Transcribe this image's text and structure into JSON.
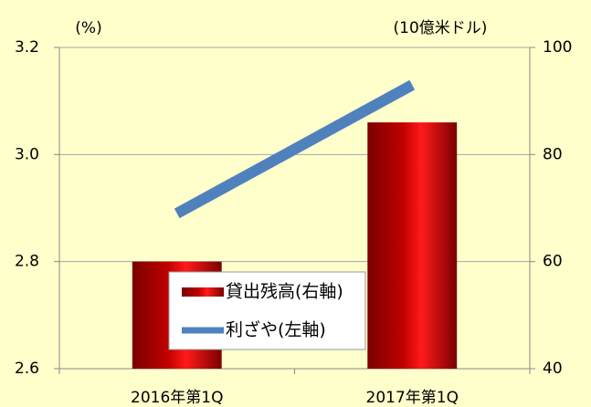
{
  "chart_data": {
    "type": "bar",
    "categories": [
      "2016年第1Q",
      "2017年第1Q"
    ],
    "y_label": "(%)",
    "y2_label": "(10億米ドル)",
    "ylim": [
      2.6,
      3.2
    ],
    "yticks": [
      2.6,
      2.8,
      {
        "value": 3,
        "label": "3.0"
      },
      3.2
    ],
    "y2lim": [
      40,
      100
    ],
    "y2ticks": [
      40,
      60,
      80,
      100
    ],
    "grid": true,
    "legend": "lower center",
    "series": [
      {
        "name": "貸出残高(右軸)",
        "type": "bar",
        "axis": "y2",
        "color": "#c00000",
        "values": [
          60,
          86
        ]
      },
      {
        "name": "利ざや(左軸)",
        "type": "line",
        "axis": "y",
        "color": "#4f81bd",
        "values": [
          2.89,
          3.13
        ]
      }
    ]
  }
}
